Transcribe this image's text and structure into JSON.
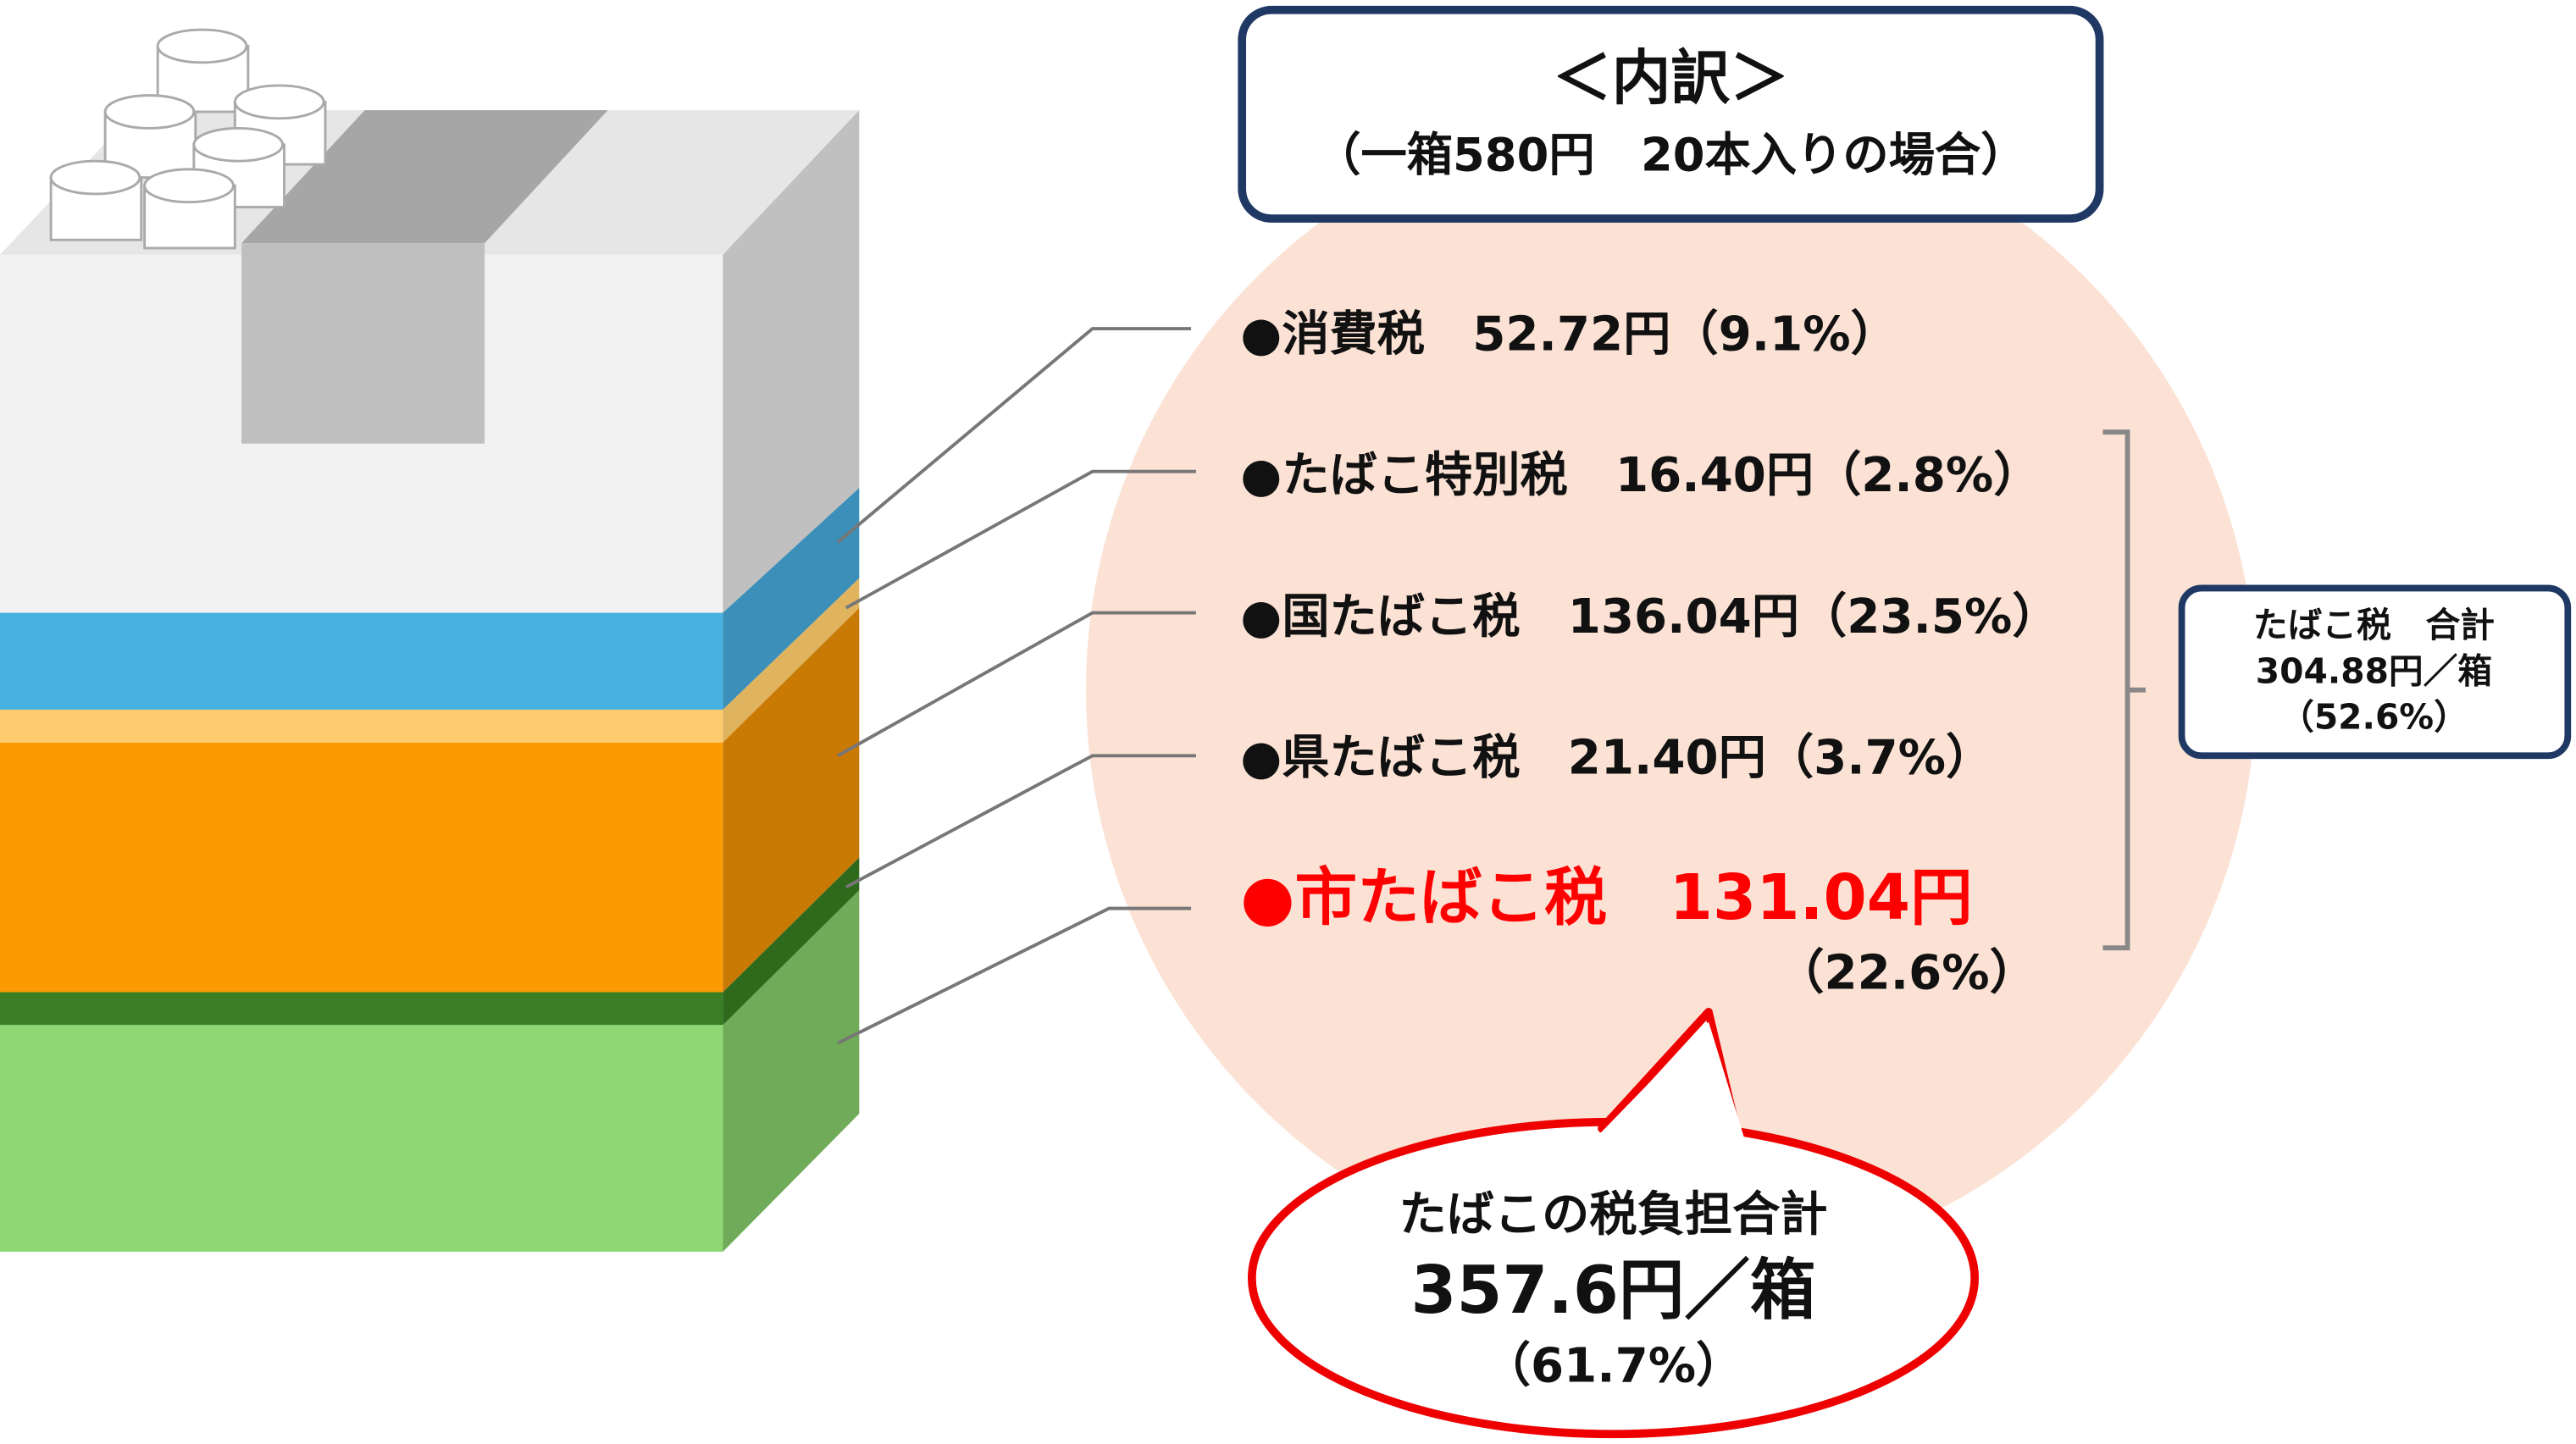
{
  "header": {
    "title": "＜内訳＞",
    "subtitle": "（一箱580円　20本入りの場合）"
  },
  "items": [
    {
      "label": "●消費税　52.72円（9.1%）"
    },
    {
      "label": "●たばこ特別税　16.40円（2.8%）"
    },
    {
      "label": "●国たばこ税　136.04円（23.5%）"
    },
    {
      "label": "●県たばこ税　21.40円（3.7%）"
    },
    {
      "label": "●市たばこ税　131.04円",
      "share": "（22.6%）"
    }
  ],
  "tobacco_tax_total": {
    "label": "たばこ税　合計",
    "amount": "304.88円／箱",
    "share": "（52.6%）"
  },
  "total": {
    "label": "たばこの税負担合計",
    "amount": "357.6円／箱",
    "share": "（61.7%）"
  }
}
